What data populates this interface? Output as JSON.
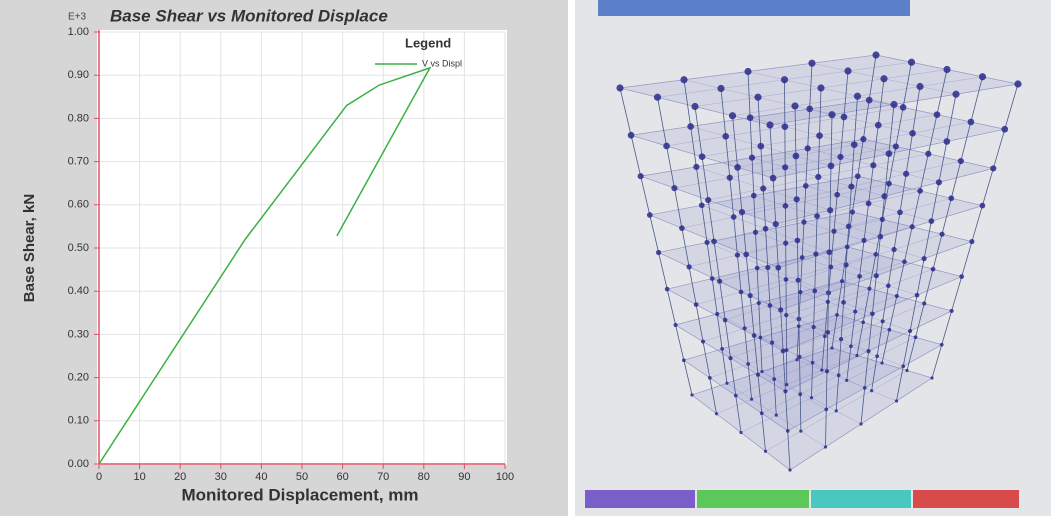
{
  "chart_data": {
    "type": "line",
    "title": "Base Shear vs Monitored Displace",
    "y_multiplier": "E+3",
    "x_label": "Monitored Displacement, mm",
    "y_label": "Base Shear, kN",
    "legend_title": "Legend",
    "legend_position": "top-right",
    "grid": true,
    "xlim": [
      0,
      100
    ],
    "xticks": [
      0,
      10,
      20,
      30,
      40,
      50,
      60,
      70,
      80,
      90,
      100
    ],
    "ylim": [
      0,
      1
    ],
    "yticks": [
      {
        "value": 0,
        "label": "0.00"
      },
      {
        "value": 0.1,
        "label": "0.10"
      },
      {
        "value": 0.2,
        "label": "0.20"
      },
      {
        "value": 0.3,
        "label": "0.30"
      },
      {
        "value": 0.4,
        "label": "0.40"
      },
      {
        "value": 0.5,
        "label": "0.50"
      },
      {
        "value": 0.6,
        "label": "0.60"
      },
      {
        "value": 0.7,
        "label": "0.70"
      },
      {
        "value": 0.8,
        "label": "0.80"
      },
      {
        "value": 0.9,
        "label": "0.90"
      },
      {
        "value": 1,
        "label": "1.00"
      }
    ],
    "series": [
      {
        "name": "V vs Displ",
        "color": "#3cb043",
        "x": [
          0,
          36,
          61,
          69,
          81.5,
          58.6
        ],
        "values": [
          0,
          0.52,
          0.83,
          0.877,
          0.917,
          0.528
        ]
      }
    ]
  }
}
